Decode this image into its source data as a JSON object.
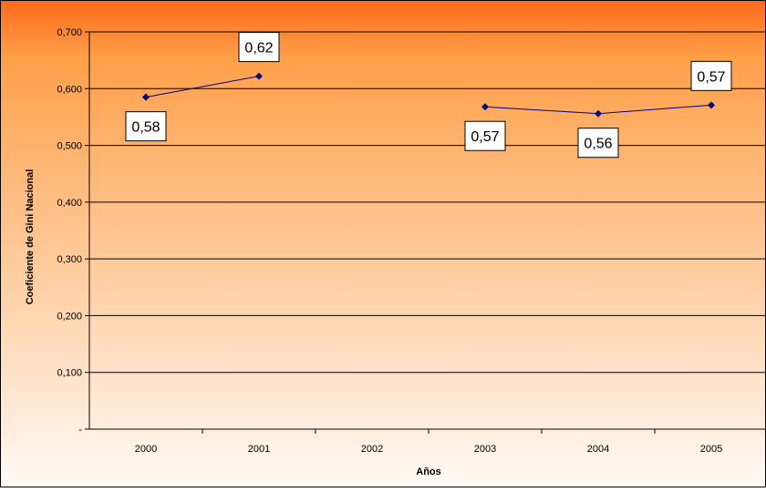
{
  "chart_data": {
    "type": "line",
    "title": "",
    "xlabel": "Años",
    "ylabel": "Coeficiente de Gini Nacional",
    "categories": [
      "2000",
      "2001",
      "2002",
      "2003",
      "2004",
      "2005"
    ],
    "series": [
      {
        "values": [
          0.585,
          0.622,
          null,
          0.568,
          0.556,
          0.571
        ],
        "data_labels": [
          "0,58",
          "0,62",
          "",
          "0,57",
          "0,56",
          "0,57"
        ],
        "color": "#000080"
      }
    ],
    "ylim": [
      0,
      0.7
    ],
    "y_ticks": [
      0,
      0.1,
      0.2,
      0.3,
      0.4,
      0.5,
      0.6,
      0.7
    ],
    "y_tick_labels": [
      "-",
      "0,100",
      "0,200",
      "0,300",
      "0,400",
      "0,500",
      "0,600",
      "0,700"
    ],
    "grid": true,
    "legend": "none",
    "background_gradient": {
      "top": "#ff6a1a",
      "middle": "#ffa04a",
      "bottom": "#fffaf6"
    }
  }
}
